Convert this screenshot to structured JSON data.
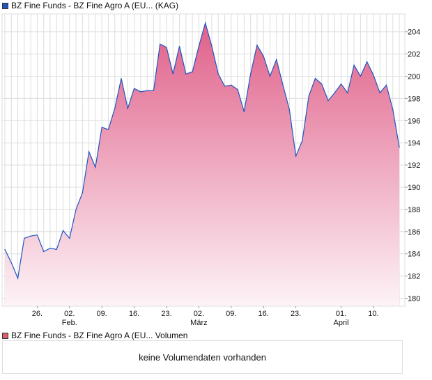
{
  "price_legend": {
    "label": "BZ Fine Funds - BZ Fine Agro A (EU... (KAG)",
    "color": "#1f55c0"
  },
  "volume_legend": {
    "label": "BZ Fine Funds - BZ Fine Agro A (EU... Volumen",
    "color": "#d9606a"
  },
  "volume_message": "keine Volumendaten vorhanden",
  "chart_data": {
    "type": "area",
    "title": "BZ Fine Funds - BZ Fine Agro A (EU... (KAG)",
    "xlabel": "",
    "ylabel": "",
    "ylim": [
      179.4,
      206.5
    ],
    "yticks": [
      180,
      182,
      184,
      186,
      188,
      190,
      192,
      194,
      196,
      198,
      200,
      202,
      204
    ],
    "grid": true,
    "line_color": "#1f55c0",
    "fill_top": "#e0608a",
    "fill_bottom": "#fdf3f6",
    "values": [
      184.4,
      183.2,
      181.8,
      185.4,
      185.6,
      185.7,
      184.2,
      184.5,
      184.4,
      186.1,
      185.4,
      188.0,
      189.5,
      193.2,
      191.8,
      195.4,
      195.2,
      197.1,
      199.8,
      197.1,
      198.9,
      198.6,
      198.7,
      198.7,
      202.9,
      202.6,
      200.2,
      202.7,
      200.2,
      200.4,
      202.7,
      204.8,
      202.7,
      200.2,
      199.1,
      199.2,
      198.8,
      196.8,
      200.2,
      202.8,
      201.8,
      200.0,
      201.5,
      199.2,
      197.0,
      192.8,
      194.2,
      198.2,
      199.8,
      199.3,
      197.8,
      198.5,
      199.3,
      198.5,
      201.0,
      200.0,
      201.3,
      200.1,
      198.5,
      199.2,
      197.0,
      193.6
    ],
    "xticks": [
      {
        "index": 5,
        "label": "26.",
        "sub": ""
      },
      {
        "index": 10,
        "label": "02.",
        "sub": "Feb."
      },
      {
        "index": 15,
        "label": "09.",
        "sub": ""
      },
      {
        "index": 20,
        "label": "16.",
        "sub": ""
      },
      {
        "index": 25,
        "label": "23.",
        "sub": ""
      },
      {
        "index": 30,
        "label": "02.",
        "sub": "März"
      },
      {
        "index": 35,
        "label": "09.",
        "sub": ""
      },
      {
        "index": 40,
        "label": "16.",
        "sub": ""
      },
      {
        "index": 45,
        "label": "23.",
        "sub": ""
      },
      {
        "index": 52,
        "label": "01.",
        "sub": "April"
      },
      {
        "index": 57,
        "label": "10.",
        "sub": ""
      }
    ]
  }
}
